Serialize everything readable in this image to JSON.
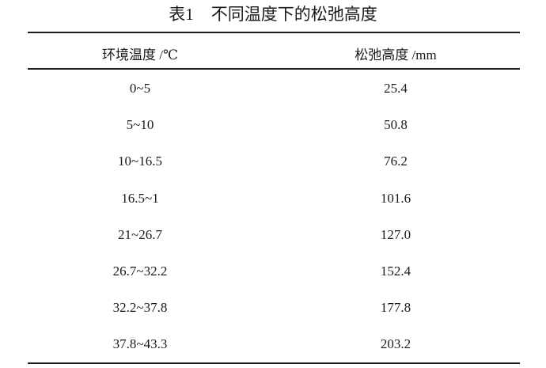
{
  "table": {
    "caption_number": "表1",
    "caption_text": "不同温度下的松弛高度",
    "headers": [
      "环境温度 /℃",
      "松弛高度 /mm"
    ],
    "rows": [
      [
        "0~5",
        "25.4"
      ],
      [
        "5~10",
        "50.8"
      ],
      [
        "10~16.5",
        "76.2"
      ],
      [
        "16.5~1",
        "101.6"
      ],
      [
        "21~26.7",
        "127.0"
      ],
      [
        "26.7~32.2",
        "152.4"
      ],
      [
        "32.2~37.8",
        "177.8"
      ],
      [
        "37.8~43.3",
        "203.2"
      ]
    ]
  }
}
